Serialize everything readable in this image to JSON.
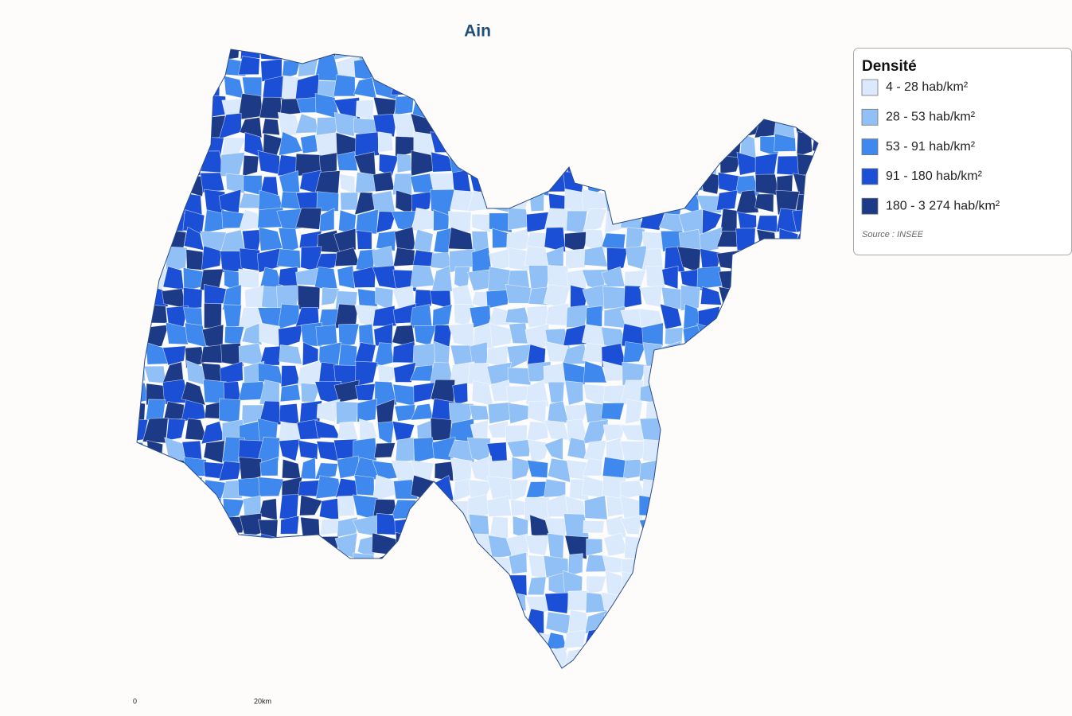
{
  "title": "Ain",
  "legend": {
    "title": "Densité",
    "items": [
      {
        "label": "4 - 28 hab/km²",
        "color": "#dbe9fc"
      },
      {
        "label": "28 - 53 hab/km²",
        "color": "#90c0f5"
      },
      {
        "label": "53 - 91 hab/km²",
        "color": "#3f88ee"
      },
      {
        "label": "91 - 180 hab/km²",
        "color": "#1a4fd6"
      },
      {
        "label": "180 - 3 274 hab/km²",
        "color": "#1c3a86"
      }
    ],
    "source": "Source : INSEE"
  },
  "scale": {
    "start": "0",
    "end": "20km"
  }
}
